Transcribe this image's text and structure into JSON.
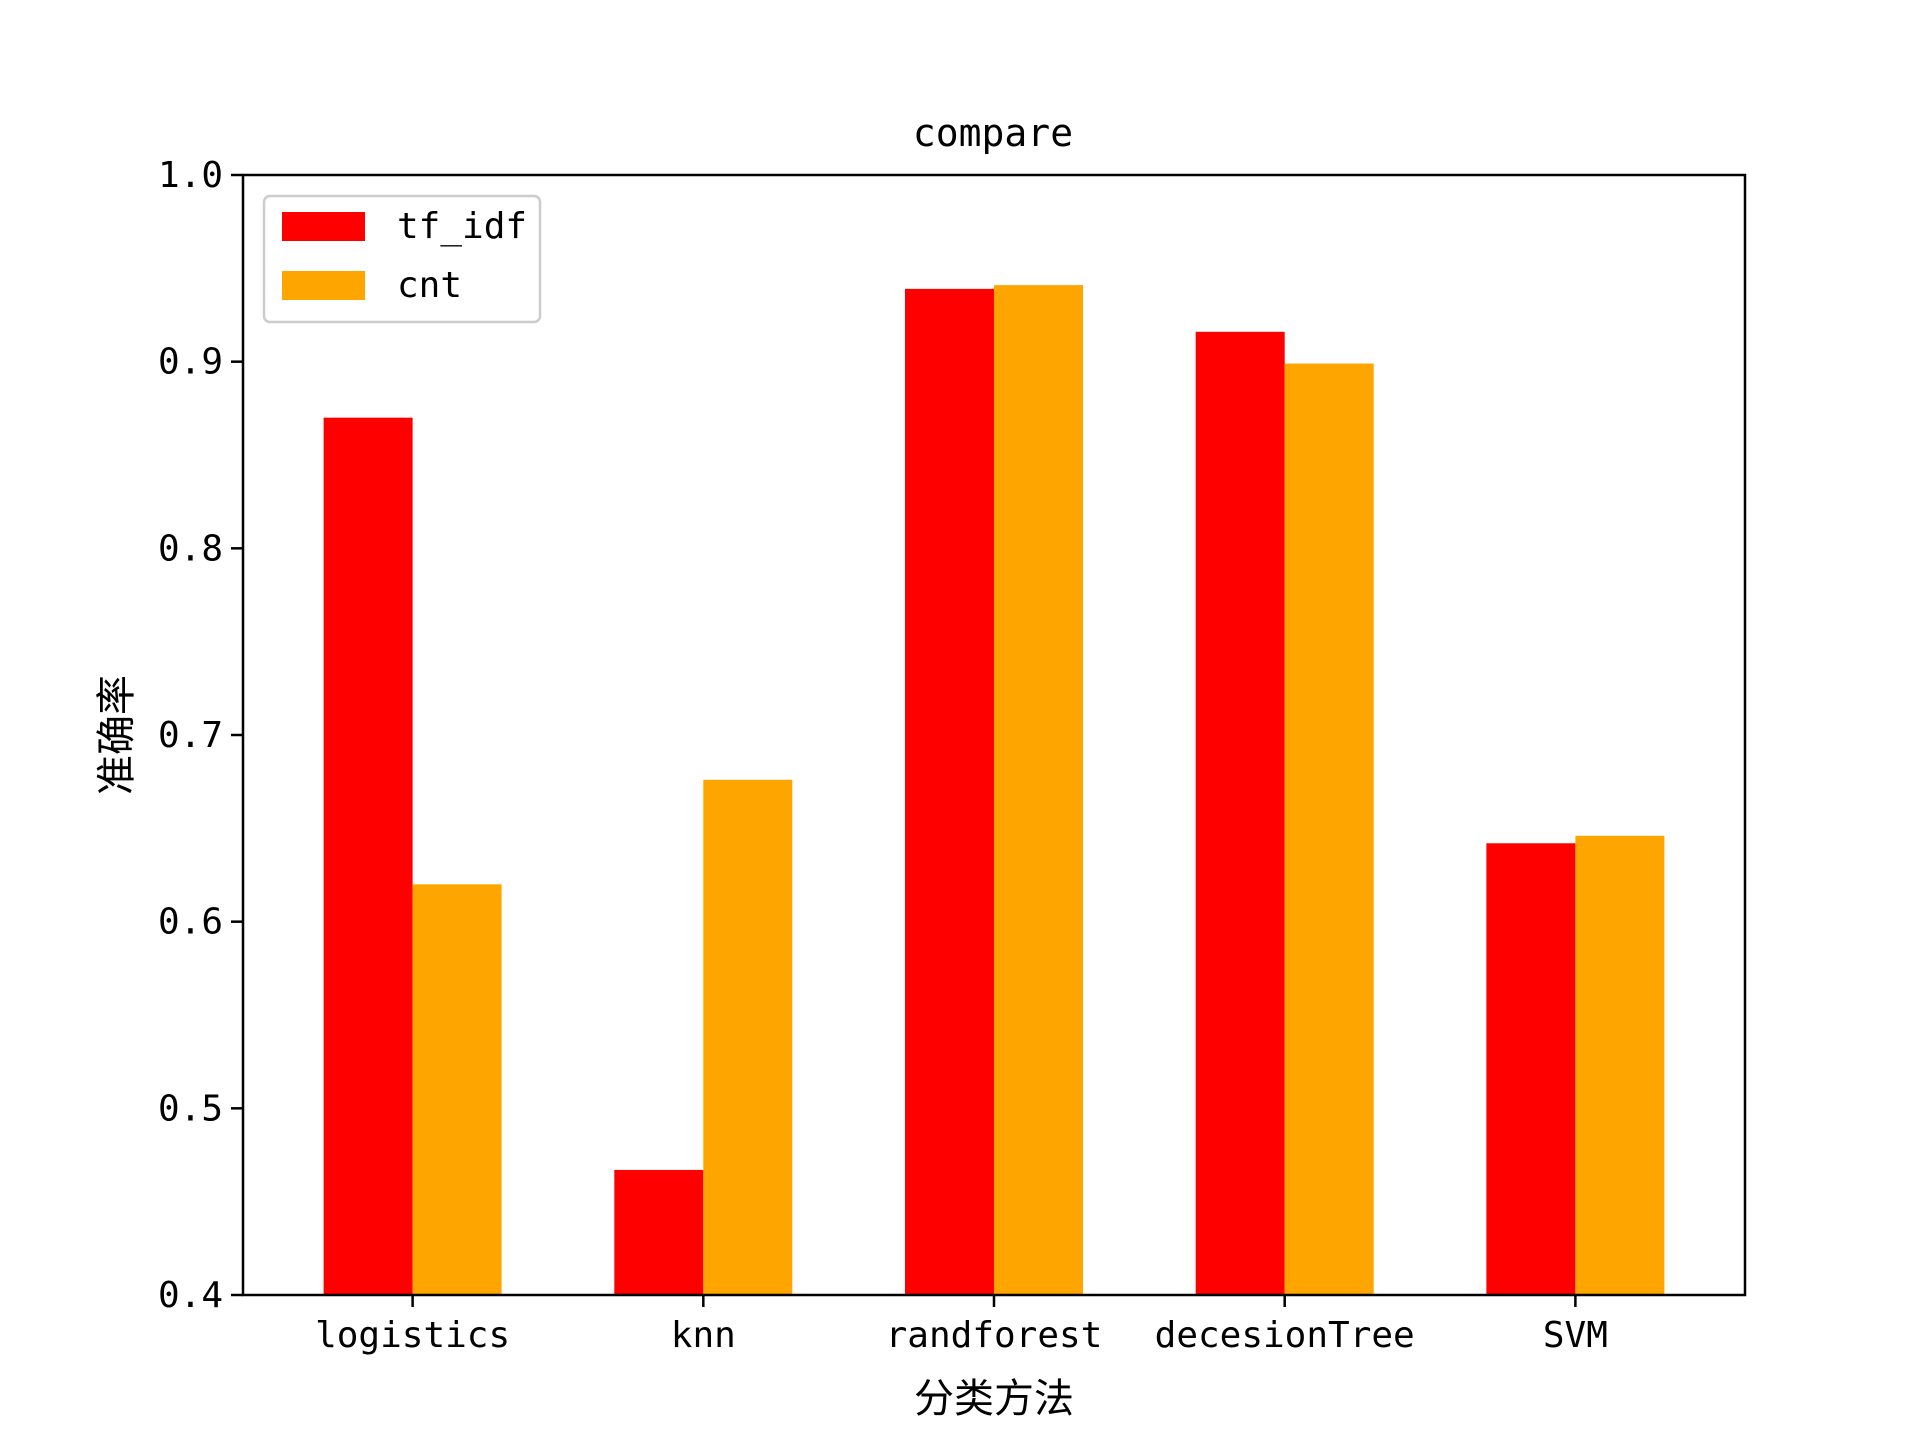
{
  "chart_data": {
    "type": "bar",
    "title": "compare",
    "xlabel": "分类方法",
    "ylabel": "准确率",
    "categories": [
      "logistics",
      "knn",
      "randforest",
      "decesionTree",
      "SVM"
    ],
    "series": [
      {
        "name": "tf_idf",
        "color": "#ff0000",
        "values": [
          0.87,
          0.467,
          0.939,
          0.916,
          0.642
        ]
      },
      {
        "name": "cnt",
        "color": "#ffa500",
        "values": [
          0.62,
          0.676,
          0.941,
          0.899,
          0.646
        ]
      }
    ],
    "ylim": [
      0.4,
      1.0
    ],
    "yticks": [
      "0.4",
      "0.5",
      "0.6",
      "0.7",
      "0.8",
      "0.9",
      "1.0"
    ],
    "grid": false,
    "legend_position": "top-left"
  }
}
